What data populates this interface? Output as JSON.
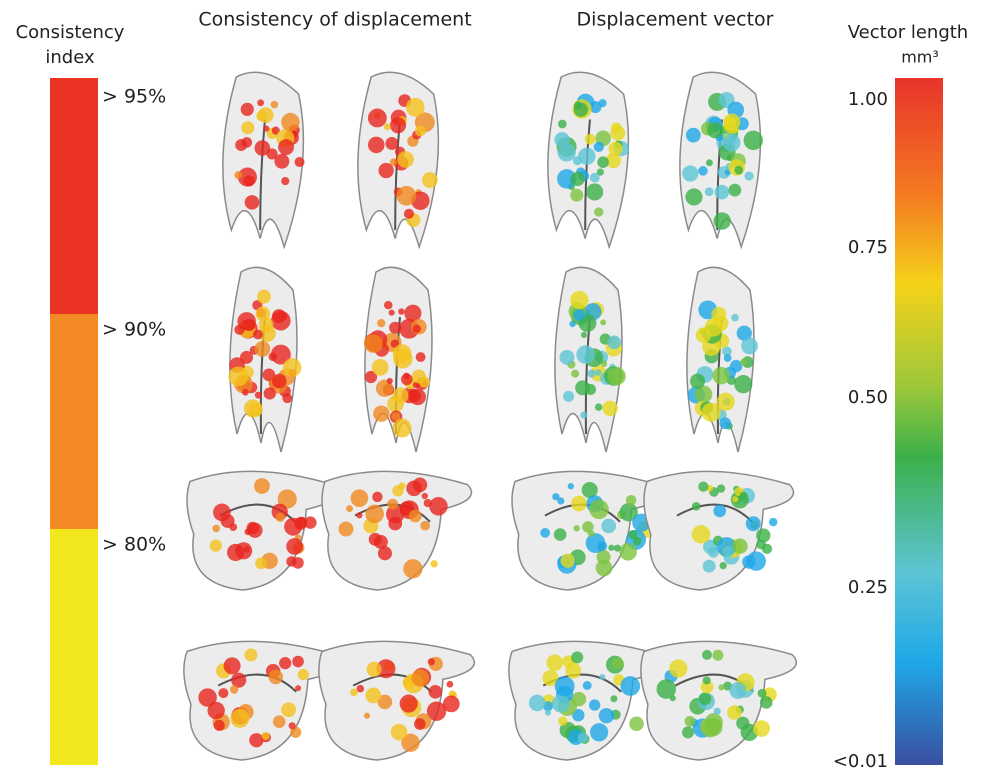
{
  "left_legend": {
    "title_lines": [
      "Consistency",
      "index"
    ],
    "labels": [
      "> 95%",
      "> 90%",
      "> 80%"
    ]
  },
  "column_titles": [
    "Consistency of displacement",
    "Displacement vector"
  ],
  "right_legend": {
    "title_lines": [
      "Vector length",
      "mm³"
    ],
    "ticks": [
      "1.00",
      "0.75",
      "0.50",
      "0.25",
      "<0.01"
    ]
  }
}
